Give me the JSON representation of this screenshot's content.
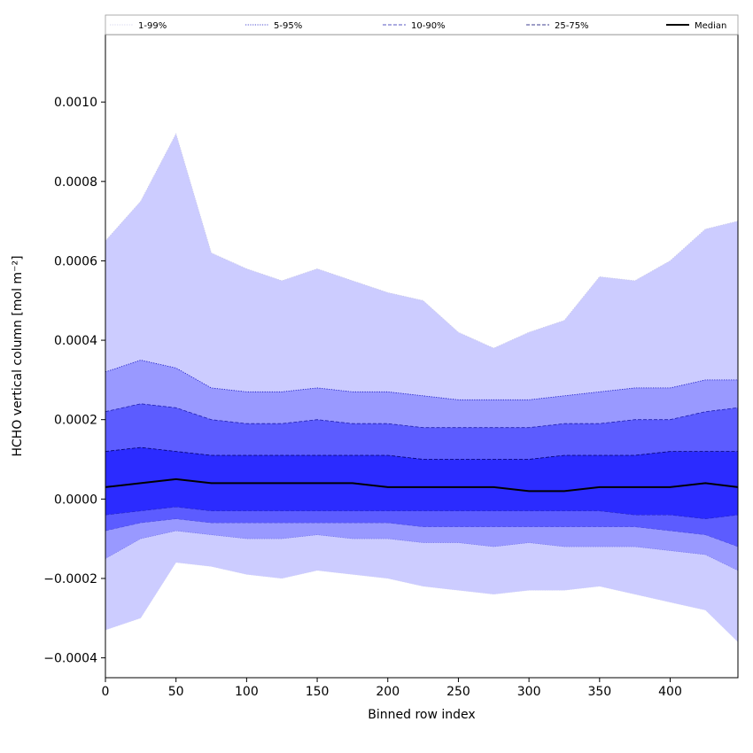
{
  "chart_data": {
    "type": "area",
    "xlabel": "Binned row index",
    "ylabel": "HCHO vertical column [mol m⁻²]",
    "xlim": [
      0,
      448
    ],
    "ylim": [
      -0.00045,
      0.00117
    ],
    "x_ticks": [
      0,
      50,
      100,
      150,
      200,
      250,
      300,
      350,
      400
    ],
    "x_tick_labels": [
      "0",
      "50",
      "100",
      "150",
      "200",
      "250",
      "300",
      "350",
      "400"
    ],
    "y_ticks": [
      -0.0004,
      -0.0002,
      0.0,
      0.0002,
      0.0004,
      0.0006,
      0.0008,
      0.001
    ],
    "y_tick_labels": [
      "−0.0004",
      "−0.0002",
      "0.0000",
      "0.0002",
      "0.0004",
      "0.0006",
      "0.0008",
      "0.0010"
    ],
    "grid": false,
    "legend_position": "top",
    "x": [
      0,
      25,
      50,
      75,
      100,
      125,
      150,
      175,
      200,
      225,
      250,
      275,
      300,
      325,
      350,
      375,
      400,
      425,
      448
    ],
    "bands": [
      {
        "name": "1-99%",
        "color": "#ccccff",
        "line_color": "#c8c8e8",
        "line_style": "dotted",
        "lower": [
          -0.00033,
          -0.0003,
          -0.00016,
          -0.00017,
          -0.00019,
          -0.0002,
          -0.00018,
          -0.00019,
          -0.0002,
          -0.00022,
          -0.00023,
          -0.00024,
          -0.00023,
          -0.00023,
          -0.00022,
          -0.00024,
          -0.00026,
          -0.00028,
          -0.00036
        ],
        "upper": [
          0.00065,
          0.00075,
          0.00092,
          0.00062,
          0.00058,
          0.00055,
          0.00058,
          0.00055,
          0.00052,
          0.0005,
          0.00042,
          0.00038,
          0.00042,
          0.00045,
          0.00056,
          0.00055,
          0.0006,
          0.00068,
          0.0007
        ]
      },
      {
        "name": "5-95%",
        "color": "#9999ff",
        "line_color": "#1010c0",
        "line_style": "dotted",
        "lower": [
          -0.00015,
          -0.0001,
          -8e-05,
          -9e-05,
          -0.0001,
          -0.0001,
          -9e-05,
          -0.0001,
          -0.0001,
          -0.00011,
          -0.00011,
          -0.00012,
          -0.00011,
          -0.00012,
          -0.00012,
          -0.00012,
          -0.00013,
          -0.00014,
          -0.00018
        ],
        "upper": [
          0.00032,
          0.00035,
          0.00033,
          0.00028,
          0.00027,
          0.00027,
          0.00028,
          0.00027,
          0.00027,
          0.00026,
          0.00025,
          0.00025,
          0.00025,
          0.00026,
          0.00027,
          0.00028,
          0.00028,
          0.0003,
          0.0003
        ]
      },
      {
        "name": "10-90%",
        "color": "#5c5cff",
        "line_color": "#2020b0",
        "line_style": "dashed",
        "lower": [
          -8e-05,
          -6e-05,
          -5e-05,
          -6e-05,
          -6e-05,
          -6e-05,
          -6e-05,
          -6e-05,
          -6e-05,
          -7e-05,
          -7e-05,
          -7e-05,
          -7e-05,
          -7e-05,
          -7e-05,
          -7e-05,
          -8e-05,
          -9e-05,
          -0.00012
        ],
        "upper": [
          0.00022,
          0.00024,
          0.00023,
          0.0002,
          0.00019,
          0.00019,
          0.0002,
          0.00019,
          0.00019,
          0.00018,
          0.00018,
          0.00018,
          0.00018,
          0.00019,
          0.00019,
          0.0002,
          0.0002,
          0.00022,
          0.00023
        ]
      },
      {
        "name": "25-75%",
        "color": "#2b2bff",
        "line_color": "#00006e",
        "line_style": "dashed",
        "lower": [
          -4e-05,
          -3e-05,
          -2e-05,
          -3e-05,
          -3e-05,
          -3e-05,
          -3e-05,
          -3e-05,
          -3e-05,
          -3e-05,
          -3e-05,
          -3e-05,
          -3e-05,
          -3e-05,
          -3e-05,
          -4e-05,
          -4e-05,
          -5e-05,
          -4e-05
        ],
        "upper": [
          0.00012,
          0.00013,
          0.00012,
          0.00011,
          0.00011,
          0.00011,
          0.00011,
          0.00011,
          0.00011,
          0.0001,
          0.0001,
          0.0001,
          0.0001,
          0.00011,
          0.00011,
          0.00011,
          0.00012,
          0.00012,
          0.00012
        ]
      }
    ],
    "median": {
      "name": "Median",
      "color": "#000000",
      "values": [
        3e-05,
        4e-05,
        5e-05,
        4e-05,
        4e-05,
        4e-05,
        4e-05,
        4e-05,
        3e-05,
        3e-05,
        3e-05,
        3e-05,
        2e-05,
        2e-05,
        3e-05,
        3e-05,
        3e-05,
        4e-05,
        3e-05
      ]
    }
  }
}
